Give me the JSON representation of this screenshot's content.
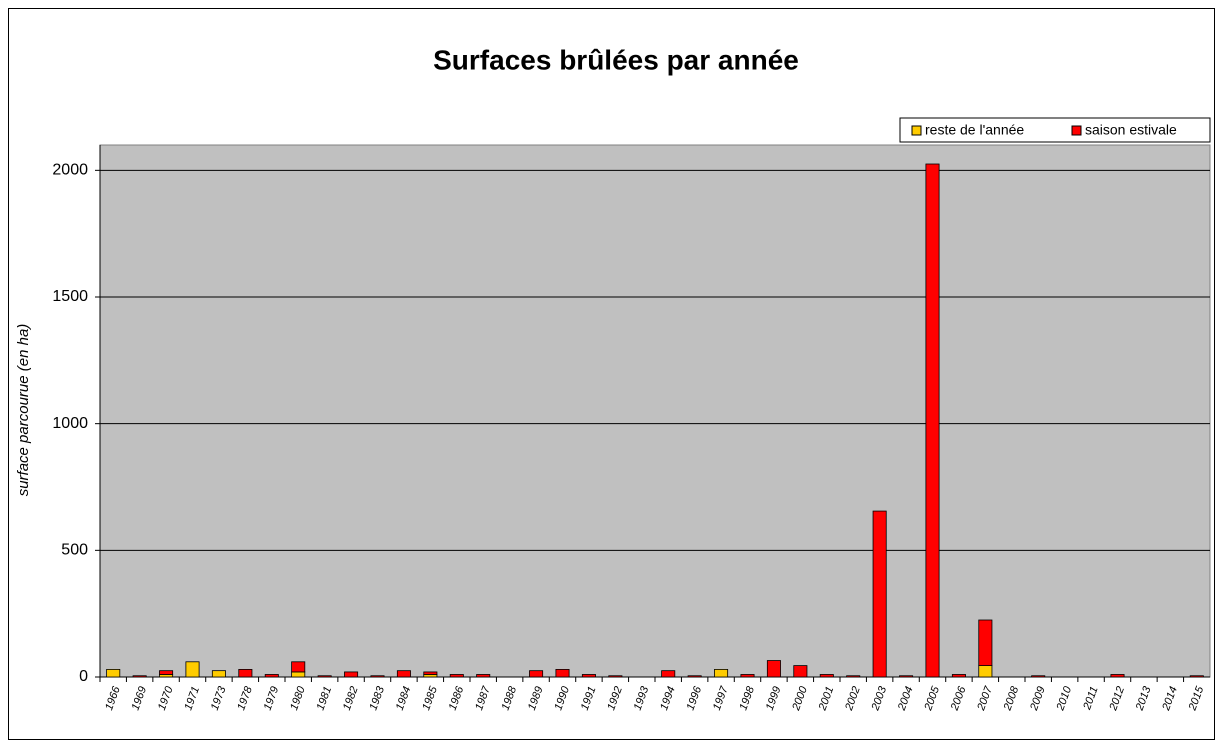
{
  "chart_data": {
    "type": "stacked_bar",
    "title": "Surfaces brûlées par année",
    "y_label": "surface parcourue (en ha)",
    "categories": [
      "1966",
      "1969",
      "1970",
      "1971",
      "1973",
      "1978",
      "1979",
      "1980",
      "1981",
      "1982",
      "1983",
      "1984",
      "1985",
      "1986",
      "1987",
      "1988",
      "1989",
      "1990",
      "1991",
      "1992",
      "1993",
      "1994",
      "1996",
      "1997",
      "1998",
      "1999",
      "2000",
      "2001",
      "2002",
      "2003",
      "2004",
      "2005",
      "2006",
      "2007",
      "2008",
      "2009",
      "2010",
      "2011",
      "2012",
      "2013",
      "2014",
      "2015"
    ],
    "series": [
      {
        "name": "reste de l'année",
        "color": "#ffcc00",
        "values": [
          30,
          0,
          10,
          60,
          25,
          0,
          0,
          20,
          0,
          0,
          0,
          0,
          10,
          0,
          0,
          0,
          0,
          0,
          0,
          0,
          0,
          0,
          0,
          30,
          0,
          0,
          0,
          0,
          0,
          0,
          0,
          0,
          0,
          45,
          0,
          0,
          0,
          0,
          0,
          0,
          0,
          0
        ]
      },
      {
        "name": "saison estivale",
        "color": "#ff0000",
        "values": [
          0,
          5,
          15,
          0,
          0,
          30,
          10,
          40,
          5,
          20,
          5,
          25,
          10,
          10,
          10,
          0,
          25,
          30,
          10,
          5,
          0,
          25,
          5,
          0,
          10,
          65,
          45,
          10,
          5,
          655,
          5,
          2025,
          10,
          180,
          0,
          5,
          0,
          0,
          10,
          0,
          0,
          5
        ]
      }
    ],
    "ylim": [
      0,
      2100
    ],
    "yticks": [
      0,
      500,
      1000,
      1500,
      2000
    ],
    "grid": true,
    "legend": "top-right"
  }
}
